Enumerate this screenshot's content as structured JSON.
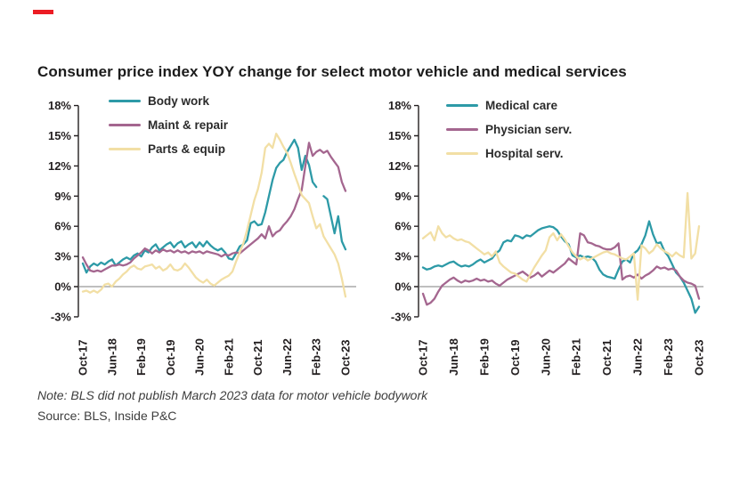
{
  "brand_mark": {
    "color": "#ec1c24"
  },
  "title": "Consumer price index YOY change for select motor vehicle and medical services",
  "note": "Note: BLS did not publish March 2023 data for motor vehicle bodywork",
  "source": "Source: BLS, Inside P&C",
  "colors": {
    "teal": "#2d9aa7",
    "mauve": "#a4668f",
    "cream": "#f2dfa5",
    "axis": "#231f20",
    "zero_line": "#7f7f7f",
    "text": "#2b2b2b"
  },
  "chart_data": [
    {
      "type": "line",
      "panel": "motor vehicle services",
      "ylim": [
        -3,
        18
      ],
      "y_tick_labels": [
        "18%",
        "15%",
        "12%",
        "9%",
        "6%",
        "3%",
        "0%",
        "-3%"
      ],
      "x_range": "Oct-17 to Oct-23, monthly (73 points)",
      "x_tick_labels": [
        "Oct-17",
        "Jun-18",
        "Feb-19",
        "Oct-19",
        "Jun-20",
        "Feb-21",
        "Oct-21",
        "Jun-22",
        "Feb-23",
        "Oct-23"
      ],
      "x_tick_month_index": [
        0,
        8,
        16,
        24,
        32,
        40,
        48,
        56,
        64,
        72
      ],
      "grid": "none; horizontal line at 0% only",
      "legend_position": "top-left inside plot",
      "series": [
        {
          "name": "Body work",
          "color": "#2d9aa7",
          "missing": [
            "Mar-23"
          ],
          "values": [
            2.3,
            1.4,
            2.0,
            2.3,
            2.1,
            2.4,
            2.2,
            2.5,
            2.7,
            2.1,
            2.4,
            2.7,
            2.9,
            2.7,
            3.1,
            3.3,
            3.0,
            3.6,
            3.4,
            3.9,
            4.2,
            3.6,
            3.9,
            4.2,
            4.4,
            3.9,
            4.3,
            4.5,
            3.9,
            4.2,
            4.4,
            3.9,
            4.4,
            4.0,
            4.5,
            4.1,
            3.8,
            3.6,
            3.8,
            3.4,
            2.8,
            2.7,
            3.3,
            4.0,
            4.2,
            4.6,
            6.3,
            6.5,
            6.1,
            6.2,
            7.4,
            9.0,
            10.6,
            11.8,
            12.3,
            12.6,
            13.4,
            14.0,
            14.6,
            13.8,
            11.6,
            13.0,
            12.1,
            10.4,
            9.9,
            null,
            9.0,
            8.7,
            7.0,
            5.3,
            7.0,
            4.5,
            3.7
          ]
        },
        {
          "name": "Maint & repair",
          "color": "#a4668f",
          "values": [
            2.9,
            2.2,
            1.6,
            1.5,
            1.6,
            1.5,
            1.7,
            1.9,
            2.1,
            2.1,
            2.2,
            2.1,
            2.2,
            2.4,
            2.8,
            3.1,
            3.4,
            3.8,
            3.6,
            3.3,
            3.6,
            3.4,
            3.7,
            3.5,
            3.6,
            3.4,
            3.6,
            3.4,
            3.5,
            3.3,
            3.5,
            3.4,
            3.5,
            3.3,
            3.5,
            3.4,
            3.3,
            3.2,
            3.0,
            3.2,
            3.1,
            3.3,
            3.4,
            3.3,
            3.6,
            3.9,
            4.2,
            4.5,
            4.8,
            5.2,
            4.8,
            6.0,
            5.0,
            5.4,
            5.6,
            6.1,
            6.5,
            7.0,
            7.7,
            8.7,
            9.6,
            12.0,
            14.3,
            13.0,
            13.4,
            13.6,
            13.3,
            13.5,
            12.9,
            12.4,
            11.9,
            10.4,
            9.5
          ]
        },
        {
          "name": "Parts & equip",
          "color": "#f2dfa5",
          "values": [
            -0.5,
            -0.4,
            -0.6,
            -0.4,
            -0.6,
            -0.3,
            0.2,
            0.3,
            0.0,
            0.5,
            0.8,
            1.2,
            1.5,
            1.9,
            2.1,
            1.8,
            1.7,
            2.0,
            2.1,
            2.2,
            1.8,
            2.0,
            1.6,
            1.8,
            2.2,
            1.7,
            1.6,
            1.8,
            2.3,
            1.9,
            1.4,
            0.9,
            0.6,
            0.4,
            0.7,
            0.3,
            0.1,
            0.4,
            0.7,
            0.9,
            1.1,
            1.5,
            2.5,
            3.4,
            4.3,
            5.6,
            7.1,
            8.6,
            9.7,
            11.3,
            13.8,
            14.2,
            13.8,
            15.2,
            14.6,
            13.9,
            13.3,
            12.3,
            11.2,
            10.2,
            9.1,
            8.7,
            8.3,
            7.0,
            5.8,
            6.2,
            5.0,
            4.4,
            3.8,
            3.2,
            2.3,
            0.8,
            -1.0
          ]
        }
      ]
    },
    {
      "type": "line",
      "panel": "medical services",
      "ylim": [
        -3,
        18
      ],
      "y_tick_labels": [
        "18%",
        "15%",
        "12%",
        "9%",
        "6%",
        "3%",
        "0%",
        "-3%"
      ],
      "x_range": "Oct-17 to Oct-23, monthly (73 points)",
      "x_tick_labels": [
        "Oct-17",
        "Jun-18",
        "Feb-19",
        "Oct-19",
        "Jun-20",
        "Feb-21",
        "Oct-21",
        "Jun-22",
        "Feb-23",
        "Oct-23"
      ],
      "x_tick_month_index": [
        0,
        8,
        16,
        24,
        32,
        40,
        48,
        56,
        64,
        72
      ],
      "grid": "none; horizontal line at 0% only",
      "legend_position": "top-left inside plot",
      "series": [
        {
          "name": "Medical care",
          "color": "#2d9aa7",
          "values": [
            1.9,
            1.7,
            1.8,
            2.0,
            2.1,
            2.0,
            2.2,
            2.4,
            2.5,
            2.2,
            2.0,
            2.1,
            2.0,
            2.2,
            2.5,
            2.7,
            2.4,
            2.6,
            2.8,
            3.3,
            3.6,
            4.4,
            4.6,
            4.5,
            5.1,
            5.0,
            4.8,
            5.1,
            5.0,
            5.3,
            5.6,
            5.8,
            5.9,
            6.0,
            5.9,
            5.6,
            5.0,
            4.5,
            4.2,
            3.1,
            2.9,
            3.1,
            2.9,
            3.0,
            2.9,
            2.5,
            1.7,
            1.2,
            1.0,
            0.9,
            0.8,
            1.7,
            2.5,
            2.7,
            2.4,
            3.3,
            3.6,
            4.2,
            5.1,
            6.5,
            5.2,
            4.3,
            4.4,
            3.5,
            3.0,
            2.2,
            1.4,
            1.0,
            0.4,
            -0.4,
            -1.2,
            -2.6,
            -2.0
          ]
        },
        {
          "name": "Physician serv.",
          "color": "#a4668f",
          "values": [
            -0.7,
            -1.8,
            -1.6,
            -1.2,
            -0.5,
            0.1,
            0.4,
            0.7,
            0.9,
            0.6,
            0.4,
            0.6,
            0.5,
            0.6,
            0.8,
            0.6,
            0.7,
            0.5,
            0.6,
            0.3,
            0.1,
            0.4,
            0.7,
            0.9,
            1.1,
            1.3,
            1.5,
            1.2,
            0.9,
            1.1,
            1.4,
            1.0,
            1.3,
            1.6,
            1.4,
            1.7,
            2.0,
            2.3,
            2.8,
            2.5,
            2.2,
            5.3,
            5.1,
            4.4,
            4.3,
            4.1,
            4.0,
            3.8,
            3.7,
            3.7,
            3.9,
            4.3,
            0.7,
            1.0,
            1.1,
            0.9,
            1.2,
            0.8,
            1.1,
            1.3,
            1.6,
            2.0,
            1.8,
            1.9,
            1.7,
            1.8,
            1.6,
            1.0,
            0.6,
            0.4,
            0.3,
            0.1,
            -1.2
          ]
        },
        {
          "name": "Hospital serv.",
          "color": "#f2dfa5",
          "values": [
            4.8,
            5.1,
            5.4,
            4.6,
            6.0,
            5.3,
            4.9,
            5.1,
            4.8,
            4.6,
            4.7,
            4.5,
            4.4,
            4.1,
            3.8,
            3.5,
            3.2,
            3.4,
            3.0,
            3.5,
            2.4,
            2.0,
            1.7,
            1.4,
            1.3,
            1.0,
            0.7,
            0.5,
            1.2,
            1.9,
            2.5,
            3.1,
            3.6,
            4.9,
            5.3,
            4.6,
            5.2,
            4.7,
            4.0,
            3.4,
            3.0,
            2.7,
            2.9,
            2.6,
            2.8,
            3.0,
            3.2,
            3.4,
            3.5,
            3.3,
            3.2,
            3.0,
            2.8,
            2.7,
            3.0,
            3.3,
            -1.3,
            4.1,
            3.8,
            3.3,
            3.6,
            4.2,
            3.8,
            3.5,
            3.3,
            3.0,
            3.4,
            3.1,
            2.9,
            9.3,
            2.8,
            3.3,
            6.0
          ]
        }
      ]
    }
  ]
}
